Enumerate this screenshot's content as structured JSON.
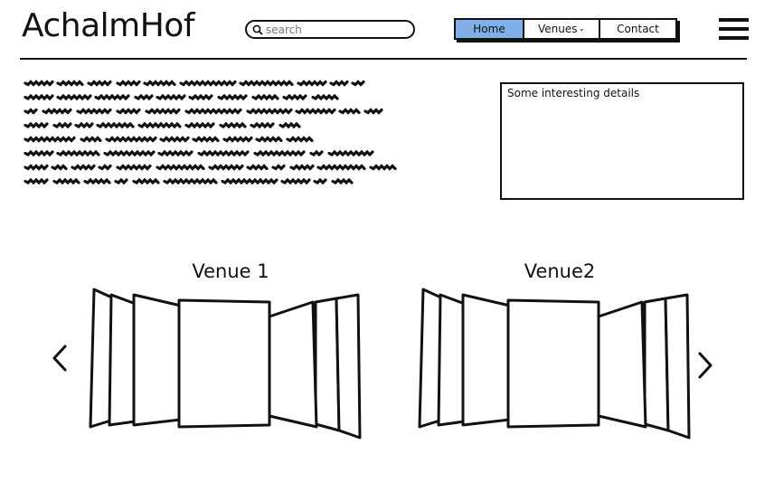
{
  "header": {
    "logo": "AchalmHof",
    "search": {
      "placeholder": "search",
      "value": ""
    },
    "nav": [
      {
        "label": "Home",
        "active": true
      },
      {
        "label": "Venues",
        "has_dropdown": true
      },
      {
        "label": "Contact"
      }
    ]
  },
  "details": {
    "text": "Some interesting details"
  },
  "venues": [
    {
      "title": "Venue 1"
    },
    {
      "title": "Venue2"
    }
  ],
  "colors": {
    "active_nav": "#7fb0e8",
    "ink": "#111111"
  },
  "icons": [
    "search-icon",
    "chevron-down-icon",
    "hamburger-menu-icon",
    "chevron-left-icon",
    "chevron-right-icon"
  ]
}
